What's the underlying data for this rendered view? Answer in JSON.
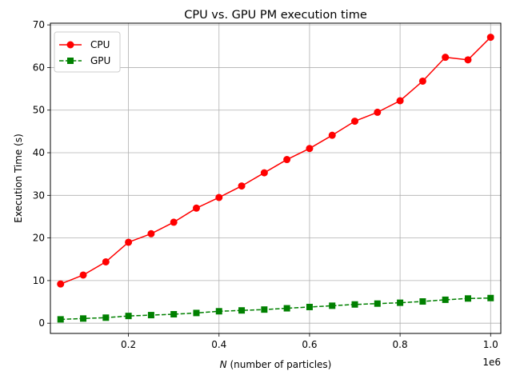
{
  "chart_data": {
    "type": "line",
    "title": "CPU vs. GPU PM execution time",
    "xlabel_var": "N",
    "xlabel_rest": " (number of particles)",
    "ylabel": "Execution Time (s)",
    "x_offset_label": "1e6",
    "xlim": [
      0.0275,
      1.0225
    ],
    "ylim": [
      -2.4,
      70.4
    ],
    "x_ticks": [
      0.2,
      0.4,
      0.6,
      0.8,
      1.0
    ],
    "x_tick_labels": [
      "0.2",
      "0.4",
      "0.6",
      "0.8",
      "1.0"
    ],
    "y_ticks": [
      0,
      10,
      20,
      30,
      40,
      50,
      60,
      70
    ],
    "y_tick_labels": [
      "0",
      "10",
      "20",
      "30",
      "40",
      "50",
      "60",
      "70"
    ],
    "grid": true,
    "legend_position": "top-left",
    "x": [
      0.05,
      0.1,
      0.15,
      0.2,
      0.25,
      0.3,
      0.35,
      0.4,
      0.45,
      0.5,
      0.55,
      0.6,
      0.65,
      0.7,
      0.75,
      0.8,
      0.85,
      0.9,
      0.95,
      1.0
    ],
    "series": [
      {
        "name": "CPU",
        "color": "#ff0000",
        "marker": "circle",
        "line_style": "solid",
        "values": [
          9.2,
          11.3,
          14.4,
          19.0,
          21.0,
          23.7,
          27.0,
          29.5,
          32.2,
          35.3,
          38.4,
          41.0,
          44.1,
          47.4,
          49.5,
          52.2,
          56.8,
          62.4,
          61.8,
          67.1
        ]
      },
      {
        "name": "GPU",
        "color": "#008000",
        "marker": "square",
        "line_style": "dashed",
        "values": [
          0.9,
          1.1,
          1.3,
          1.7,
          1.9,
          2.1,
          2.4,
          2.8,
          3.0,
          3.2,
          3.5,
          3.8,
          4.1,
          4.4,
          4.6,
          4.8,
          5.1,
          5.5,
          5.8,
          5.9
        ]
      }
    ]
  }
}
